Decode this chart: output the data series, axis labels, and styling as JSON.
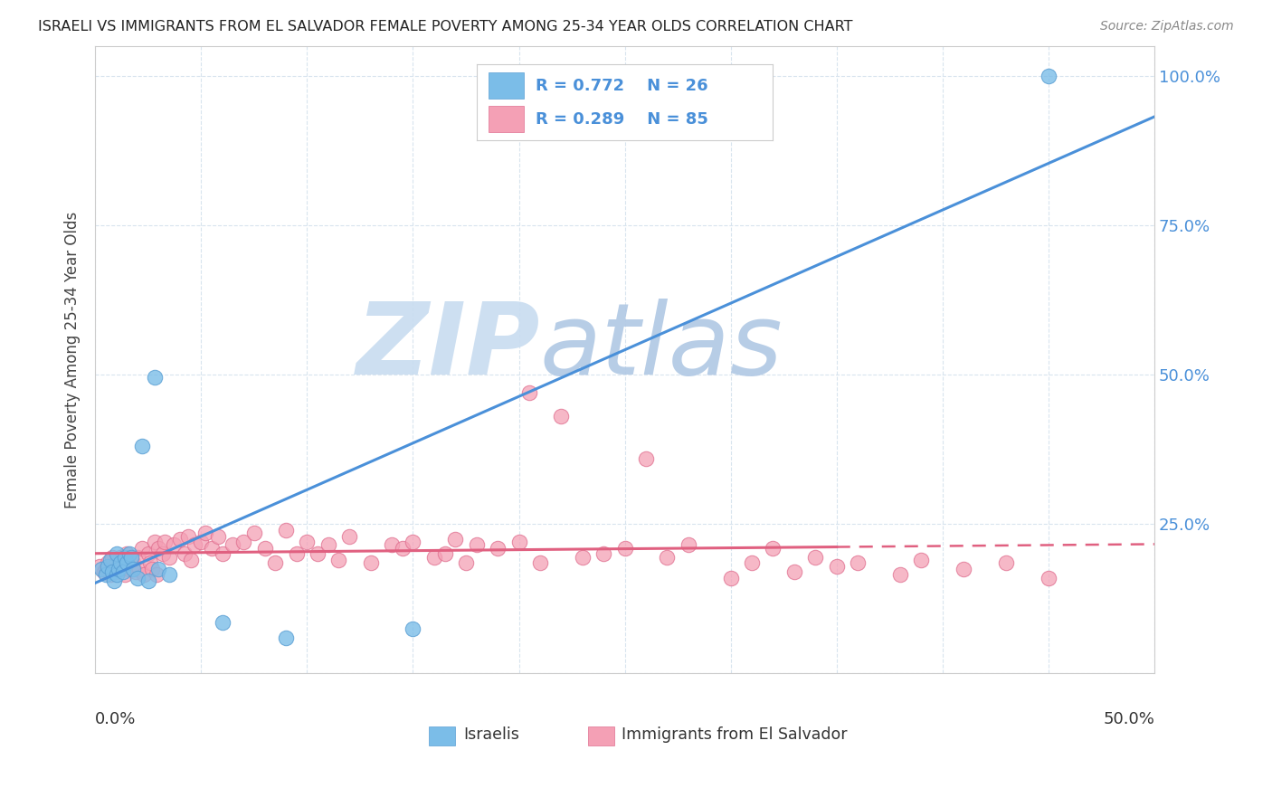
{
  "title": "ISRAELI VS IMMIGRANTS FROM EL SALVADOR FEMALE POVERTY AMONG 25-34 YEAR OLDS CORRELATION CHART",
  "source": "Source: ZipAtlas.com",
  "ylabel": "Female Poverty Among 25-34 Year Olds",
  "xlim": [
    0.0,
    0.55
  ],
  "ylim": [
    -0.05,
    1.1
  ],
  "plot_xlim": [
    0.0,
    0.5
  ],
  "plot_ylim": [
    0.0,
    1.05
  ],
  "israelis_color": "#7BBDE8",
  "israelis_edge_color": "#5A9FD4",
  "el_salvador_color": "#F4A0B5",
  "el_salvador_edge_color": "#E07090",
  "regression_blue_color": "#4A90D9",
  "regression_pink_solid_color": "#E06080",
  "regression_pink_dash_color": "#E06080",
  "legend_R_blue": "R = 0.772",
  "legend_N_blue": "N = 26",
  "legend_R_pink": "R = 0.289",
  "legend_N_pink": "N = 85",
  "watermark_zip": "ZIP",
  "watermark_atlas": "atlas",
  "watermark_color_zip": "#C5D8EE",
  "watermark_color_atlas": "#B8C8E0",
  "background_color": "#FFFFFF",
  "grid_color": "#D8E4EE",
  "ytick_positions": [
    0.0,
    0.25,
    0.5,
    0.75,
    1.0
  ],
  "ytick_labels_right": [
    "",
    "25.0%",
    "50.0%",
    "75.0%",
    "100.0%"
  ],
  "xtick_label_left": "0.0%",
  "xtick_label_right": "50.0%",
  "israelis_x": [
    0.003,
    0.005,
    0.006,
    0.007,
    0.008,
    0.009,
    0.01,
    0.01,
    0.011,
    0.012,
    0.013,
    0.014,
    0.015,
    0.016,
    0.017,
    0.018,
    0.02,
    0.022,
    0.025,
    0.028,
    0.03,
    0.035,
    0.06,
    0.09,
    0.15,
    0.45
  ],
  "israelis_y": [
    0.175,
    0.165,
    0.18,
    0.19,
    0.17,
    0.155,
    0.2,
    0.165,
    0.175,
    0.185,
    0.17,
    0.195,
    0.185,
    0.2,
    0.195,
    0.175,
    0.16,
    0.38,
    0.155,
    0.495,
    0.175,
    0.165,
    0.085,
    0.06,
    0.075,
    1.0
  ],
  "el_salvador_x": [
    0.002,
    0.004,
    0.005,
    0.006,
    0.007,
    0.008,
    0.009,
    0.01,
    0.011,
    0.012,
    0.013,
    0.014,
    0.015,
    0.016,
    0.017,
    0.018,
    0.019,
    0.02,
    0.021,
    0.022,
    0.023,
    0.025,
    0.026,
    0.027,
    0.028,
    0.029,
    0.03,
    0.032,
    0.033,
    0.035,
    0.037,
    0.04,
    0.042,
    0.044,
    0.045,
    0.047,
    0.05,
    0.052,
    0.055,
    0.058,
    0.06,
    0.065,
    0.07,
    0.075,
    0.08,
    0.085,
    0.09,
    0.095,
    0.1,
    0.105,
    0.11,
    0.115,
    0.12,
    0.13,
    0.14,
    0.145,
    0.15,
    0.16,
    0.165,
    0.17,
    0.175,
    0.18,
    0.19,
    0.2,
    0.205,
    0.21,
    0.22,
    0.23,
    0.24,
    0.25,
    0.26,
    0.27,
    0.28,
    0.3,
    0.31,
    0.32,
    0.33,
    0.34,
    0.35,
    0.36,
    0.38,
    0.39,
    0.41,
    0.43,
    0.45
  ],
  "el_salvador_y": [
    0.18,
    0.17,
    0.175,
    0.185,
    0.165,
    0.195,
    0.175,
    0.185,
    0.17,
    0.195,
    0.18,
    0.165,
    0.2,
    0.175,
    0.19,
    0.185,
    0.17,
    0.195,
    0.175,
    0.21,
    0.165,
    0.2,
    0.185,
    0.175,
    0.22,
    0.165,
    0.21,
    0.2,
    0.22,
    0.195,
    0.215,
    0.225,
    0.2,
    0.23,
    0.19,
    0.215,
    0.22,
    0.235,
    0.21,
    0.23,
    0.2,
    0.215,
    0.22,
    0.235,
    0.21,
    0.185,
    0.24,
    0.2,
    0.22,
    0.2,
    0.215,
    0.19,
    0.23,
    0.185,
    0.215,
    0.21,
    0.22,
    0.195,
    0.2,
    0.225,
    0.185,
    0.215,
    0.21,
    0.22,
    0.47,
    0.185,
    0.43,
    0.195,
    0.2,
    0.21,
    0.36,
    0.195,
    0.215,
    0.16,
    0.185,
    0.21,
    0.17,
    0.195,
    0.18,
    0.185,
    0.165,
    0.19,
    0.175,
    0.185,
    0.16
  ]
}
